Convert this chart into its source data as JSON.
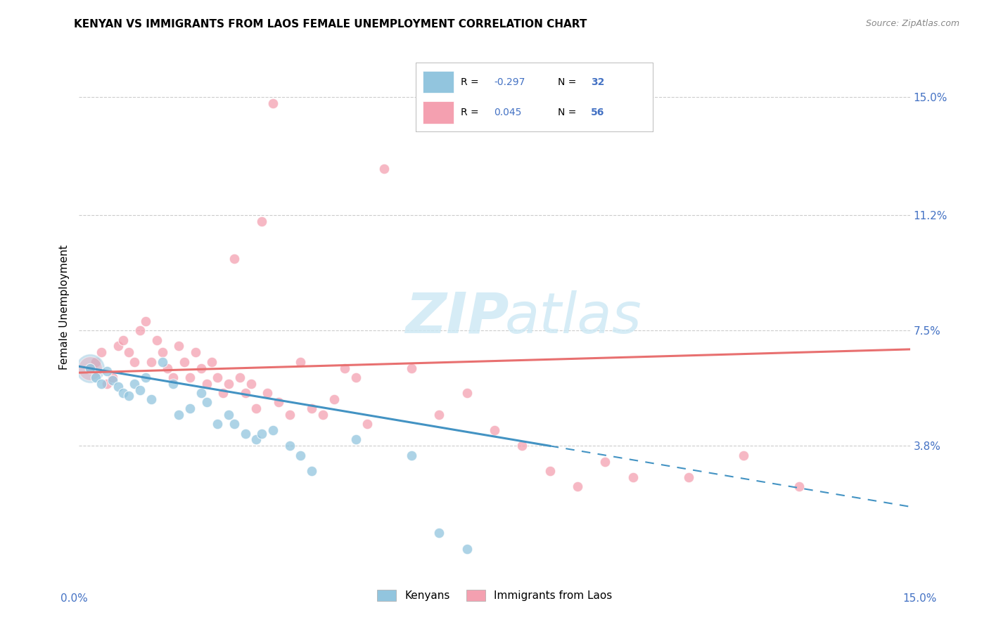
{
  "title": "KENYAN VS IMMIGRANTS FROM LAOS FEMALE UNEMPLOYMENT CORRELATION CHART",
  "source": "Source: ZipAtlas.com",
  "ylabel": "Female Unemployment",
  "ytick_labels": [
    "15.0%",
    "11.2%",
    "7.5%",
    "3.8%"
  ],
  "ytick_values": [
    0.15,
    0.112,
    0.075,
    0.038
  ],
  "xmin": 0.0,
  "xmax": 0.15,
  "ymin": 0.0,
  "ymax": 0.165,
  "legend_r_kenyan": "-0.297",
  "legend_n_kenyan": "32",
  "legend_r_laos": "0.045",
  "legend_n_laos": "56",
  "kenyan_color": "#92C5DE",
  "laos_color": "#F4A0B0",
  "kenyan_line_color": "#4393C3",
  "laos_line_color": "#E87070",
  "kenyan_points": [
    [
      0.002,
      0.063
    ],
    [
      0.003,
      0.06
    ],
    [
      0.004,
      0.058
    ],
    [
      0.005,
      0.062
    ],
    [
      0.006,
      0.059
    ],
    [
      0.007,
      0.057
    ],
    [
      0.008,
      0.055
    ],
    [
      0.009,
      0.054
    ],
    [
      0.01,
      0.058
    ],
    [
      0.011,
      0.056
    ],
    [
      0.012,
      0.06
    ],
    [
      0.013,
      0.053
    ],
    [
      0.015,
      0.065
    ],
    [
      0.017,
      0.058
    ],
    [
      0.018,
      0.048
    ],
    [
      0.02,
      0.05
    ],
    [
      0.022,
      0.055
    ],
    [
      0.023,
      0.052
    ],
    [
      0.025,
      0.045
    ],
    [
      0.027,
      0.048
    ],
    [
      0.028,
      0.045
    ],
    [
      0.03,
      0.042
    ],
    [
      0.032,
      0.04
    ],
    [
      0.033,
      0.042
    ],
    [
      0.035,
      0.043
    ],
    [
      0.038,
      0.038
    ],
    [
      0.04,
      0.035
    ],
    [
      0.042,
      0.03
    ],
    [
      0.05,
      0.04
    ],
    [
      0.06,
      0.035
    ],
    [
      0.065,
      0.01
    ],
    [
      0.07,
      0.005
    ]
  ],
  "laos_points": [
    [
      0.002,
      0.063
    ],
    [
      0.003,
      0.065
    ],
    [
      0.004,
      0.068
    ],
    [
      0.005,
      0.058
    ],
    [
      0.006,
      0.06
    ],
    [
      0.007,
      0.07
    ],
    [
      0.008,
      0.072
    ],
    [
      0.009,
      0.068
    ],
    [
      0.01,
      0.065
    ],
    [
      0.011,
      0.075
    ],
    [
      0.012,
      0.078
    ],
    [
      0.013,
      0.065
    ],
    [
      0.014,
      0.072
    ],
    [
      0.015,
      0.068
    ],
    [
      0.016,
      0.063
    ],
    [
      0.017,
      0.06
    ],
    [
      0.018,
      0.07
    ],
    [
      0.019,
      0.065
    ],
    [
      0.02,
      0.06
    ],
    [
      0.021,
      0.068
    ],
    [
      0.022,
      0.063
    ],
    [
      0.023,
      0.058
    ],
    [
      0.024,
      0.065
    ],
    [
      0.025,
      0.06
    ],
    [
      0.026,
      0.055
    ],
    [
      0.027,
      0.058
    ],
    [
      0.028,
      0.098
    ],
    [
      0.029,
      0.06
    ],
    [
      0.03,
      0.055
    ],
    [
      0.031,
      0.058
    ],
    [
      0.032,
      0.05
    ],
    [
      0.033,
      0.11
    ],
    [
      0.034,
      0.055
    ],
    [
      0.035,
      0.148
    ],
    [
      0.036,
      0.052
    ],
    [
      0.038,
      0.048
    ],
    [
      0.04,
      0.065
    ],
    [
      0.042,
      0.05
    ],
    [
      0.044,
      0.048
    ],
    [
      0.046,
      0.053
    ],
    [
      0.048,
      0.063
    ],
    [
      0.05,
      0.06
    ],
    [
      0.052,
      0.045
    ],
    [
      0.055,
      0.127
    ],
    [
      0.06,
      0.063
    ],
    [
      0.065,
      0.048
    ],
    [
      0.07,
      0.055
    ],
    [
      0.075,
      0.043
    ],
    [
      0.08,
      0.038
    ],
    [
      0.085,
      0.03
    ],
    [
      0.09,
      0.025
    ],
    [
      0.095,
      0.033
    ],
    [
      0.1,
      0.028
    ],
    [
      0.11,
      0.028
    ],
    [
      0.12,
      0.035
    ],
    [
      0.13,
      0.025
    ]
  ],
  "kenyan_line": {
    "x0": 0.0,
    "y0": 0.0635,
    "x1_solid": 0.085,
    "x1_dash": 0.15,
    "slope": -0.3
  },
  "laos_line": {
    "x0": 0.0,
    "y0": 0.0615,
    "x1": 0.15,
    "slope": 0.05
  }
}
